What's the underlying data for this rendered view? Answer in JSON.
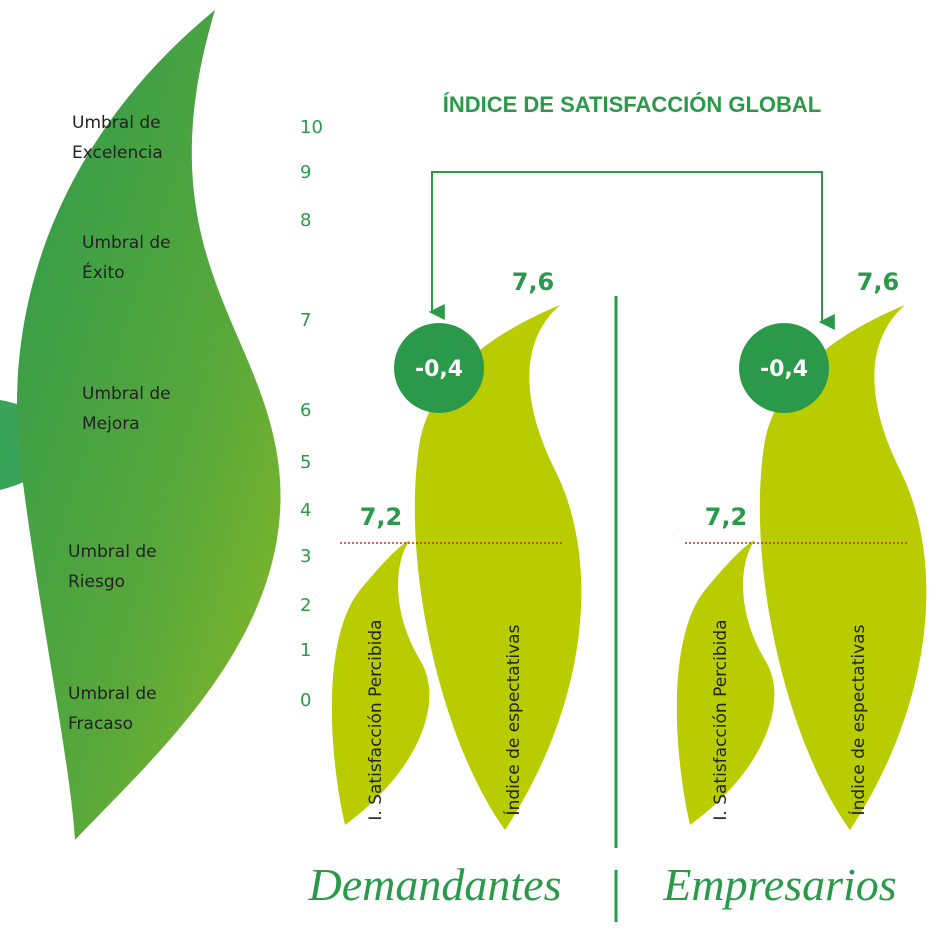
{
  "title": "ÍNDICE DE SATISFACCIÓN GLOBAL",
  "thresholds": [
    {
      "lines": [
        "Umbral de",
        "Excelencia"
      ]
    },
    {
      "lines": [
        "Umbral de",
        "Éxito"
      ]
    },
    {
      "lines": [
        "Umbral de",
        "Mejora"
      ]
    },
    {
      "lines": [
        "Umbral de",
        "Riesgo"
      ]
    },
    {
      "lines": [
        "Umbral de",
        "Fracaso"
      ]
    }
  ],
  "scale": [
    10,
    9,
    8,
    7,
    6,
    5,
    4,
    3,
    2,
    1,
    0
  ],
  "groups": [
    {
      "name": "Demandantes",
      "gap": "-0,4",
      "expectations_value": "7,6",
      "satisfaction_value": "7,2",
      "satisfaction_label": "I. Satisfacción Percibida",
      "expectations_label": "Índice de espectativas"
    },
    {
      "name": "Empresarios",
      "gap": "-0,4",
      "expectations_value": "7,6",
      "satisfaction_value": "7,2",
      "satisfaction_label": "I. Satisfacción Percibida",
      "expectations_label": "Índice de espectativas"
    }
  ]
}
